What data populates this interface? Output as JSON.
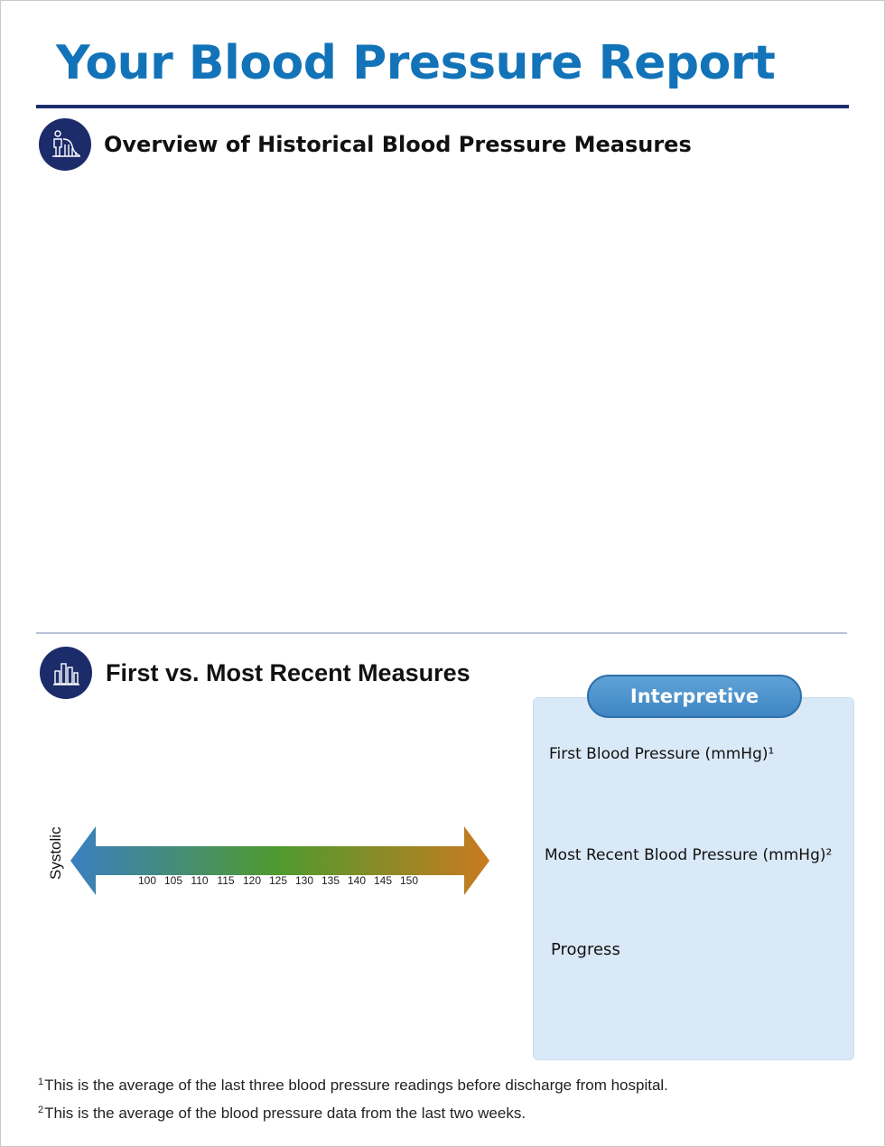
{
  "title": "Your Blood Pressure Report",
  "sections": {
    "overview": {
      "title": "Overview of Historical Blood Pressure Measures",
      "icon": "patient-chart-icon"
    },
    "comparison": {
      "title": "First vs. Most Recent Measures",
      "icon": "bar-chart-icon"
    }
  },
  "scale": {
    "axis_label": "Systolic",
    "ticks": [
      "100",
      "105",
      "110",
      "115",
      "120",
      "125",
      "130",
      "135",
      "140",
      "145",
      "150"
    ],
    "colors": [
      "#3a7fc1",
      "#4f9a2e",
      "#c97a1f"
    ]
  },
  "interpretive": {
    "header": "Interpretive",
    "first_label": "First Blood Pressure (mmHg)¹",
    "recent_label": "Most Recent Blood Pressure (mmHg)²",
    "progress_label": "Progress"
  },
  "footnotes": [
    {
      "mark": "1",
      "text": "This is the average of the last three blood pressure readings before discharge from hospital."
    },
    {
      "mark": "2",
      "text": "This is the average of the blood pressure data from the last two weeks."
    }
  ]
}
